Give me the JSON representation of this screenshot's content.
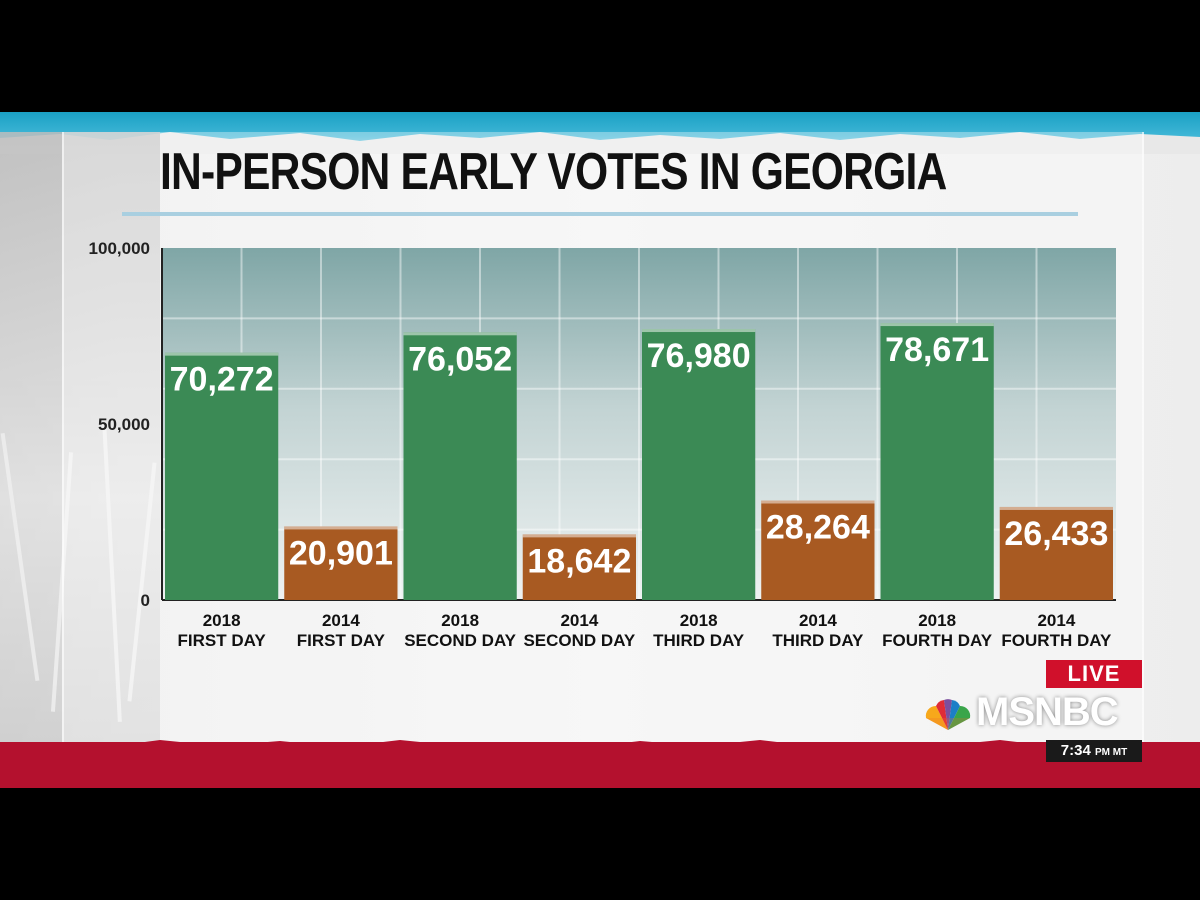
{
  "chart_data": {
    "type": "bar",
    "title": "IN-PERSON EARLY VOTES IN GEORGIA",
    "categories": [
      [
        "2018",
        "FIRST DAY"
      ],
      [
        "2014",
        "FIRST DAY"
      ],
      [
        "2018",
        "SECOND DAY"
      ],
      [
        "2014",
        "SECOND DAY"
      ],
      [
        "2018",
        "THIRD DAY"
      ],
      [
        "2014",
        "THIRD DAY"
      ],
      [
        "2018",
        "FOURTH DAY"
      ],
      [
        "2014",
        "FOURTH DAY"
      ]
    ],
    "values": [
      70272,
      20901,
      76052,
      18642,
      76980,
      28264,
      78671,
      26433
    ],
    "value_labels": [
      "70,272",
      "20,901",
      "76,052",
      "18,642",
      "76,980",
      "28,264",
      "78,671",
      "26,433"
    ],
    "bar_colors": [
      "#3b8a55",
      "#a85a22",
      "#3b8a55",
      "#a85a22",
      "#3b8a55",
      "#a85a22",
      "#3b8a55",
      "#a85a22"
    ],
    "ylim": [
      0,
      100000
    ],
    "yticks": [
      {
        "value": 0,
        "label": "0"
      },
      {
        "value": 50000,
        "label": "50,000"
      },
      {
        "value": 100000,
        "label": "100,000"
      }
    ],
    "grid": true,
    "xlabel": "",
    "ylabel": ""
  },
  "overlay": {
    "live_label": "LIVE",
    "network_name": "MSNBC",
    "clock_time": "7:34",
    "clock_suffix": "PM MT"
  },
  "colors": {
    "bar_2018": "#3b8a55",
    "bar_2014": "#a85a22",
    "plot_bg_top": "#7fa6a6",
    "plot_bg_bottom": "#e9eeee",
    "accent_red": "#b4112e",
    "accent_blue": "#1aa0c4"
  }
}
